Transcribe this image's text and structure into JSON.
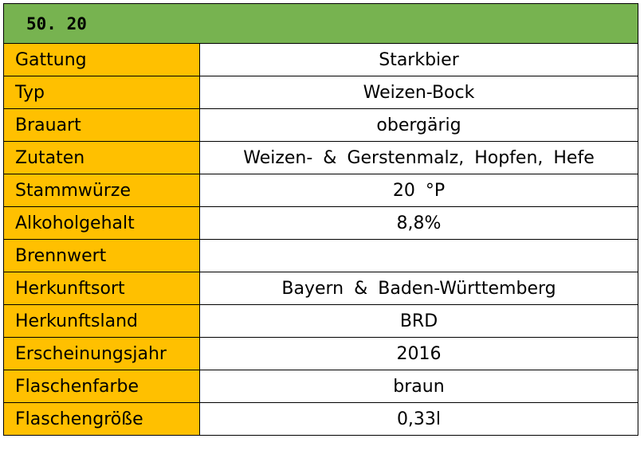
{
  "header": {
    "title": "50. 20"
  },
  "colors": {
    "header_bg": "#77B350",
    "label_bg": "#FFC000",
    "value_bg": "#FFFFFF",
    "border": "#000000"
  },
  "rows": [
    {
      "label": "Gattung",
      "value": "Starkbier"
    },
    {
      "label": "Typ",
      "value": "Weizen-Bock"
    },
    {
      "label": "Brauart",
      "value": "obergärig"
    },
    {
      "label": "Zutaten",
      "value": "Weizen- & Gerstenmalz, Hopfen, Hefe"
    },
    {
      "label": "Stammwürze",
      "value": "20 °P"
    },
    {
      "label": "Alkoholgehalt",
      "value": "8,8%"
    },
    {
      "label": "Brennwert",
      "value": ""
    },
    {
      "label": "Herkunftsort",
      "value": "Bayern & Baden-Württemberg"
    },
    {
      "label": "Herkunftsland",
      "value": "BRD"
    },
    {
      "label": "Erscheinungsjahr",
      "value": "2016"
    },
    {
      "label": "Flaschenfarbe",
      "value": "braun"
    },
    {
      "label": "Flaschengröße",
      "value": "0,33l"
    }
  ]
}
